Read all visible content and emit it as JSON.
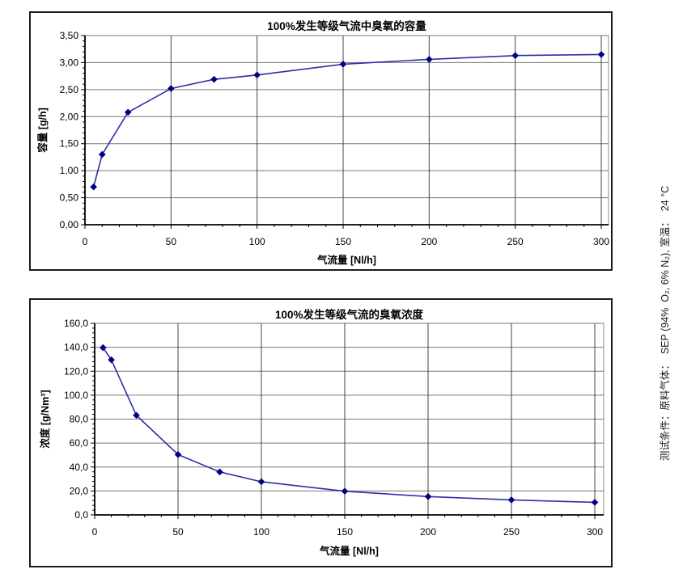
{
  "side_note": {
    "text": "测试条件：原料气体：  SEP (94%  O₂, 6% N₂), 室温：  24 °C"
  },
  "chart_data": [
    {
      "type": "line",
      "title": "100%发生等级气流中臭氧的容量",
      "xlabel": "气流量 [Nl/h]",
      "ylabel": "容量 [g/h]",
      "x": [
        5,
        10,
        25,
        50,
        75,
        100,
        150,
        200,
        250,
        300
      ],
      "values": [
        0.7,
        1.3,
        2.08,
        2.52,
        2.69,
        2.77,
        2.97,
        3.06,
        3.13,
        3.15
      ],
      "xlim": [
        0,
        300
      ],
      "ylim": [
        0,
        3.5
      ],
      "x_ticks": [
        0,
        50,
        100,
        150,
        200,
        250,
        300
      ],
      "x_tick_labels": [
        "0",
        "50",
        "100",
        "150",
        "200",
        "250",
        "300"
      ],
      "x_minor_step": 10,
      "y_ticks": [
        0,
        0.5,
        1,
        1.5,
        2,
        2.5,
        3,
        3.5
      ],
      "y_tick_labels": [
        "0,00",
        "0,50",
        "1,00",
        "1,50",
        "2,00",
        "2,50",
        "3,00",
        "3,50"
      ],
      "y_minor_step": 0.1,
      "grid": true,
      "legend": "none",
      "line_color": "#2e2ea8",
      "marker_color": "#000080",
      "marker": "diamond"
    },
    {
      "type": "line",
      "title": "100%发生等级气流的臭氧浓度",
      "xlabel": "气流量 [Nl/h]",
      "ylabel": "浓度 [g/Nm³]",
      "x": [
        5,
        10,
        25,
        50,
        75,
        100,
        150,
        200,
        250,
        300
      ],
      "values": [
        139.7,
        129.5,
        83.2,
        50.4,
        35.9,
        27.7,
        19.8,
        15.3,
        12.5,
        10.5
      ],
      "xlim": [
        0,
        300
      ],
      "ylim": [
        0,
        160
      ],
      "x_ticks": [
        0,
        50,
        100,
        150,
        200,
        250,
        300
      ],
      "x_tick_labels": [
        "0",
        "50",
        "100",
        "150",
        "200",
        "250",
        "300"
      ],
      "x_minor_step": 10,
      "y_ticks": [
        0,
        20,
        40,
        60,
        80,
        100,
        120,
        140,
        160
      ],
      "y_tick_labels": [
        "0,0",
        "20,0",
        "40,0",
        "60,0",
        "80,0",
        "100,0",
        "120,0",
        "140,0",
        "160,0"
      ],
      "y_minor_step": 4,
      "grid": true,
      "legend": "none",
      "line_color": "#2e2ea8",
      "marker_color": "#000080",
      "marker": "diamond"
    }
  ]
}
